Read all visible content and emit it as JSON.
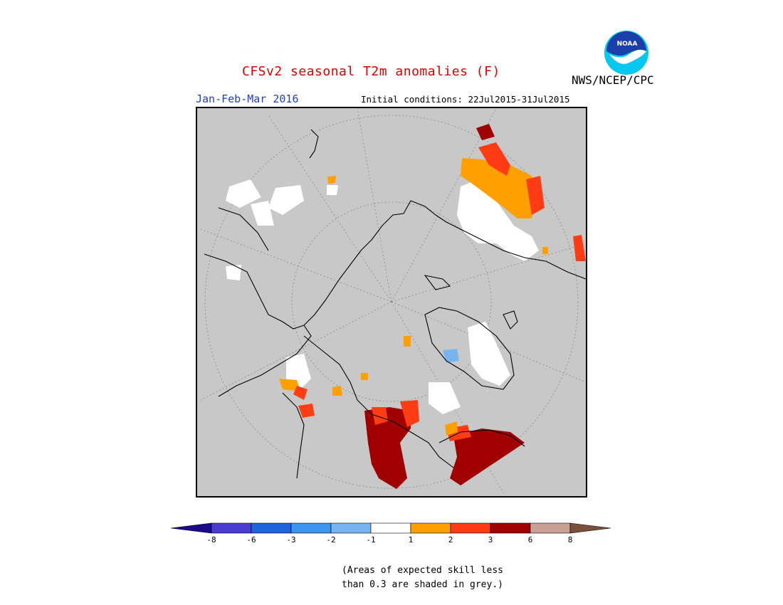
{
  "header": {
    "title": "CFSv2 seasonal T2m anomalies (F)",
    "organization": "NWS/NCEP/CPC",
    "season": "Jan-Feb-Mar 2016",
    "initial_conditions": "Initial conditions: 22Jul2015-31Jul2015"
  },
  "logo": {
    "icon": "noaa-logo-icon",
    "text": "NOAA",
    "colors": {
      "outer": "#00c8f0",
      "inner": "#1a3fa8",
      "bird": "#ffffff"
    }
  },
  "map": {
    "projection": "north-polar-stereographic",
    "background_color": "#c8c8c8",
    "grid_color": "#8a8a8a",
    "coast_color": "#000000"
  },
  "colorbar": {
    "colors": [
      "#1c0a8c",
      "#4a3cd0",
      "#1e64dc",
      "#3c96f0",
      "#78b4f0",
      "#ffffff",
      "#ffa000",
      "#ff3c14",
      "#a00000",
      "#c8a096",
      "#7a503c"
    ],
    "tick_labels": [
      "-8",
      "-6",
      "-3",
      "-2",
      "-1",
      "1",
      "2",
      "3",
      "6",
      "8"
    ]
  },
  "note": {
    "line1": "(Areas of expected skill less",
    "line2": "than 0.3 are shaded in grey.)"
  }
}
